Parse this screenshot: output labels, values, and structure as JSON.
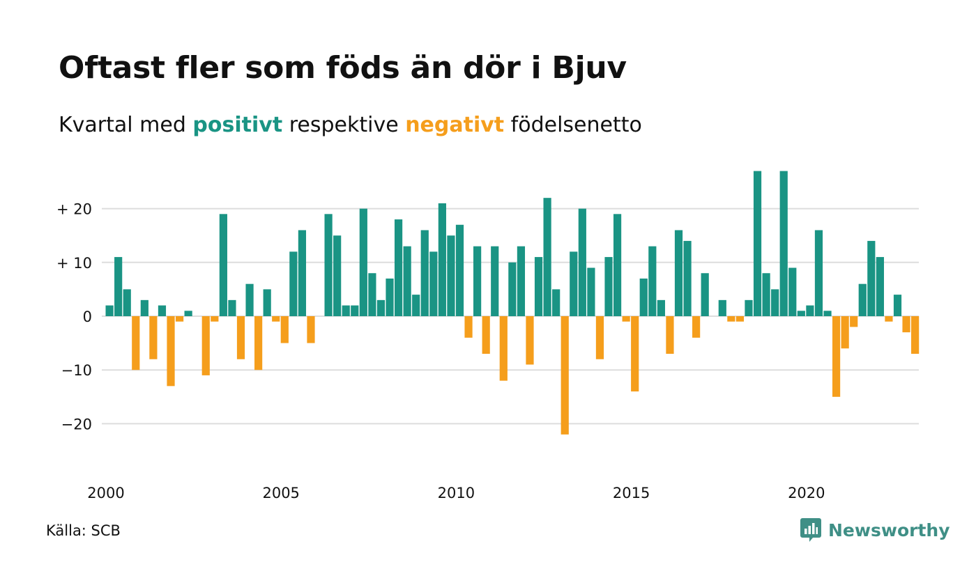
{
  "title": "Oftast fler som föds än dör i Bjuv",
  "subtitle": {
    "before": "Kvartal med ",
    "positive": "positivt",
    "middle": " respektive ",
    "negative": "negativt",
    "after": " födelsenetto"
  },
  "source": "Källa: SCB",
  "brand": "Newsworthy",
  "colors": {
    "positive": "#1a9484",
    "negative": "#f59e1c",
    "grid": "#dddddd",
    "brand": "#3f8f86"
  },
  "chart_data": {
    "type": "bar",
    "x_tick_labels": [
      "2000",
      "2005",
      "2010",
      "2015",
      "2020"
    ],
    "y_tick_labels": [
      "+ 20",
      "+ 10",
      "0",
      "−10",
      "−20"
    ],
    "y_ticks": [
      20,
      10,
      0,
      -10,
      -20
    ],
    "ylim": [
      -25,
      27
    ],
    "grid": true,
    "period_start": "2000 Q1",
    "values": [
      2,
      11,
      5,
      -10,
      3,
      -8,
      2,
      -13,
      -1,
      1,
      0,
      -11,
      -1,
      19,
      3,
      -8,
      6,
      -10,
      5,
      -1,
      -5,
      12,
      16,
      -5,
      0,
      19,
      15,
      2,
      2,
      20,
      8,
      3,
      7,
      18,
      13,
      4,
      16,
      12,
      21,
      15,
      17,
      -4,
      13,
      -7,
      13,
      -12,
      10,
      13,
      -9,
      11,
      22,
      5,
      -22,
      12,
      20,
      9,
      -8,
      11,
      19,
      -1,
      -14,
      7,
      13,
      3,
      -7,
      16,
      14,
      -4,
      8,
      0,
      3,
      -1,
      -1,
      3,
      27,
      8,
      5,
      27,
      9,
      1,
      2,
      16,
      1,
      -15,
      -6,
      -2,
      6,
      14,
      11,
      -1,
      4,
      -3,
      -7
    ]
  }
}
